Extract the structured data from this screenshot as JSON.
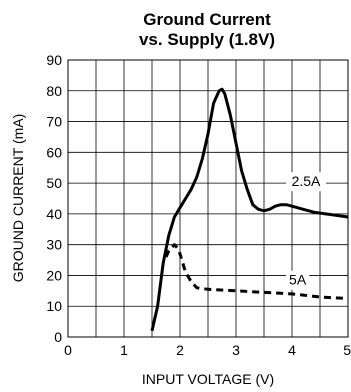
{
  "chart_data": {
    "type": "line",
    "title_line1": "Ground Current",
    "title_line2": "vs. Supply (1.8V)",
    "xlabel": "INPUT VOLTAGE (V)",
    "ylabel": "GROUND CURRENT (mA)",
    "xlim": [
      0,
      5
    ],
    "ylim": [
      0,
      90
    ],
    "xticks": [
      "0",
      "1",
      "2",
      "3",
      "4",
      "5"
    ],
    "yticks": [
      "0",
      "10",
      "20",
      "30",
      "40",
      "50",
      "60",
      "70",
      "80",
      "90"
    ],
    "grid": true,
    "series": [
      {
        "name": "2.5A",
        "style": "solid",
        "color": "#000000",
        "x": [
          1.5,
          1.6,
          1.7,
          1.8,
          1.9,
          2.0,
          2.1,
          2.2,
          2.3,
          2.4,
          2.5,
          2.6,
          2.7,
          2.75,
          2.8,
          2.9,
          3.0,
          3.1,
          3.2,
          3.3,
          3.4,
          3.5,
          3.6,
          3.7,
          3.8,
          3.9,
          4.0,
          4.2,
          4.4,
          4.6,
          4.8,
          5.0
        ],
        "y": [
          2,
          10,
          24,
          33,
          39,
          42,
          45,
          48,
          52,
          58,
          66,
          76,
          80,
          80.5,
          79,
          72,
          63,
          54,
          48,
          43,
          41.5,
          41,
          41.5,
          42.5,
          43,
          43,
          42.5,
          41.5,
          40.5,
          40,
          39.5,
          39
        ]
      },
      {
        "name": "5A",
        "style": "dashed",
        "color": "#000000",
        "x": [
          1.75,
          1.8,
          1.9,
          1.95,
          2.0,
          2.05,
          2.1,
          2.2,
          2.3,
          2.5,
          3.0,
          3.5,
          4.0,
          4.5,
          5.0
        ],
        "y": [
          26,
          28,
          30,
          29,
          27,
          24,
          21,
          18,
          16,
          15.5,
          15,
          14.5,
          14,
          13,
          12.5
        ]
      }
    ],
    "annotations": [
      {
        "text": "2.5A",
        "x": 4.25,
        "y": 49
      },
      {
        "text": "5A",
        "x": 4.1,
        "y": 17
      }
    ]
  }
}
